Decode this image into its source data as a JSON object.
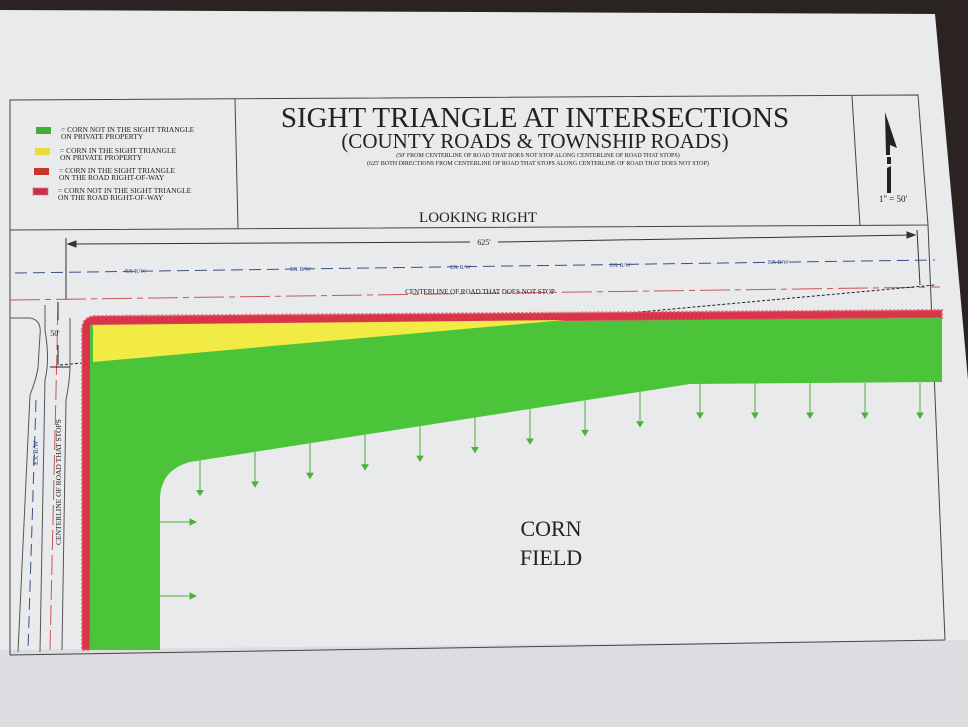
{
  "title": "SIGHT TRIANGLE AT INTERSECTIONS",
  "subtitle": "(COUNTY ROADS & TOWNSHIP ROADS)",
  "notes": [
    "(50' FROM CENTERLINE OF ROAD THAT DOES NOT STOP ALONG CENTERLINE OF ROAD THAT STOPS)",
    "(625' BOTH DIRECTIONS FROM CENTERLINE OF ROAD THAT STOPS ALONG CENTERLINE OF ROAD THAT DOES NOT STOP)"
  ],
  "view_label": "LOOKING RIGHT",
  "scale": "1\" = 50'",
  "north_arrow_icon": "north-arrow-icon",
  "legend": [
    {
      "color": "#3fae3a",
      "line1": "= CORN NOT IN THE SIGHT TRIANGLE",
      "line2": "ON PRIVATE PROPERTY"
    },
    {
      "color": "#e8dc3a",
      "line1": "= CORN IN THE SIGHT TRIANGLE",
      "line2": "ON PRIVATE PROPERTY"
    },
    {
      "color": "#c8352f",
      "line1": "= CORN IN THE SIGHT TRIANGLE",
      "line2": "ON THE ROAD RIGHT-OF-WAY"
    },
    {
      "color": "#c8304a",
      "line1": "= CORN NOT IN THE SIGHT TRIANGLE",
      "line2": "ON THE ROAD RIGHT-OF-WAY"
    }
  ],
  "dimension_625": "625'",
  "dimension_50": "50'",
  "ex_rw_label": "EX R/W",
  "centerline_no_stop": "CENTERLINE OF ROAD THAT DOES NOT STOP",
  "centerline_stop": "CENTERLINE OF ROAD THAT STOPS",
  "field_label_1": "CORN",
  "field_label_2": "FIELD",
  "colors": {
    "green": "#4cc43a",
    "yellow": "#f2ea45",
    "red_row": "#d8344a",
    "paper": "#ecedef"
  }
}
